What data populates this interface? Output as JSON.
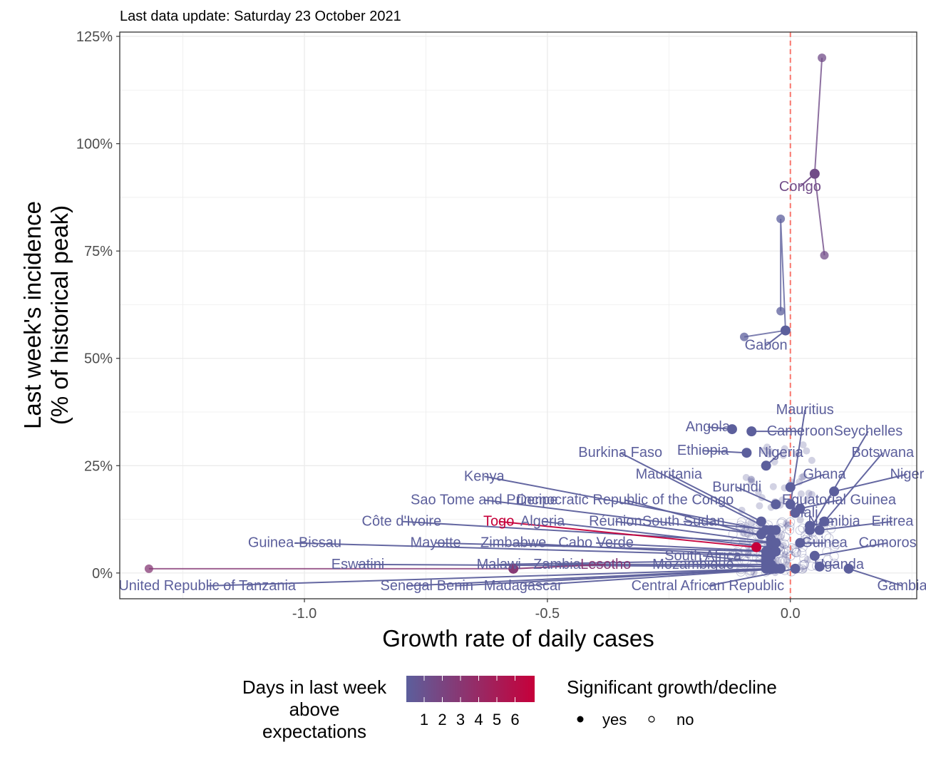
{
  "chart_data": {
    "type": "scatter",
    "subtitle": "Last data update: Saturday 23 October 2021",
    "xlabel": "Growth rate of daily cases",
    "ylabel_line1": "Last week's incidence",
    "ylabel_line2": "(% of historical peak)",
    "xlim": [
      -1.38,
      0.26
    ],
    "ylim": [
      -0.06,
      1.26
    ],
    "x_ticks": [
      -1.0,
      -0.5,
      0.0
    ],
    "x_tick_labels": [
      "-1.0",
      "-0.5",
      "0.0"
    ],
    "y_ticks": [
      0,
      0.25,
      0.5,
      0.75,
      1.0,
      1.25
    ],
    "y_tick_labels": [
      "0%",
      "25%",
      "50%",
      "75%",
      "100%",
      "125%"
    ],
    "reference_line_x": 0.0,
    "grid": true,
    "colors": {
      "low": "#5c5f9c",
      "high": "#c6003a",
      "reference": "#f8766d",
      "grid": "#ebebeb"
    },
    "legend": {
      "placement": "bottom",
      "color_title": [
        "Days in last week",
        "above",
        "expectations"
      ],
      "color_breaks": [
        "1",
        "2",
        "3",
        "4",
        "5",
        "6"
      ],
      "shape_title": "Significant growth/decline",
      "shape_labels": [
        "yes",
        "no"
      ]
    },
    "countries": [
      {
        "name": "Congo",
        "x": 0.05,
        "y": 0.93,
        "days": 2,
        "trail": [
          [
            0.07,
            0.74
          ],
          [
            0.05,
            0.93
          ],
          [
            0.065,
            1.2
          ]
        ],
        "label_x": 0.02,
        "label_y": 0.9
      },
      {
        "name": "Gabon",
        "x": -0.01,
        "y": 0.565,
        "days": 1,
        "trail": [
          [
            -0.02,
            0.61
          ],
          [
            -0.02,
            0.825
          ],
          [
            -0.01,
            0.565
          ],
          [
            -0.095,
            0.55
          ]
        ],
        "label_x": -0.05,
        "label_y": 0.53
      },
      {
        "name": "Mauritius",
        "x": 0.0,
        "y": 0.16,
        "days": 1,
        "label_x": 0.03,
        "label_y": 0.38
      },
      {
        "name": "Angola",
        "x": -0.12,
        "y": 0.335,
        "days": 1,
        "label_x": -0.17,
        "label_y": 0.34
      },
      {
        "name": "Cameroon",
        "x": -0.08,
        "y": 0.33,
        "days": 1,
        "label_x": 0.02,
        "label_y": 0.33
      },
      {
        "name": "Seychelles",
        "x": 0.04,
        "y": 0.1,
        "days": 1,
        "label_x": 0.16,
        "label_y": 0.33
      },
      {
        "name": "Burkina Faso",
        "x": -0.04,
        "y": 0.1,
        "days": 1,
        "label_x": -0.35,
        "label_y": 0.28
      },
      {
        "name": "Ethiopia",
        "x": -0.09,
        "y": 0.28,
        "days": 1,
        "label_x": -0.18,
        "label_y": 0.285
      },
      {
        "name": "Nigeria",
        "x": -0.05,
        "y": 0.25,
        "days": 1,
        "label_x": -0.02,
        "label_y": 0.28
      },
      {
        "name": "Botswana",
        "x": 0.07,
        "y": 0.12,
        "days": 1,
        "label_x": 0.19,
        "label_y": 0.28
      },
      {
        "name": "Kenya",
        "x": -0.05,
        "y": 0.1,
        "days": 1,
        "label_x": -0.63,
        "label_y": 0.225
      },
      {
        "name": "Mauritania",
        "x": -0.06,
        "y": 0.12,
        "days": 1,
        "label_x": -0.25,
        "label_y": 0.23
      },
      {
        "name": "Ghana",
        "x": 0.0,
        "y": 0.2,
        "days": 1,
        "label_x": 0.07,
        "label_y": 0.23
      },
      {
        "name": "Niger",
        "x": 0.09,
        "y": 0.19,
        "days": 1,
        "label_x": 0.24,
        "label_y": 0.23
      },
      {
        "name": "Burundi",
        "x": -0.03,
        "y": 0.16,
        "days": 1,
        "label_x": -0.11,
        "label_y": 0.2
      },
      {
        "name": "Sao Tome and Principe",
        "x": -0.06,
        "y": 0.09,
        "days": 1,
        "label_x": -0.63,
        "label_y": 0.17
      },
      {
        "name": "Democratic Republic of the Congo",
        "x": -0.04,
        "y": 0.08,
        "days": 1,
        "label_x": -0.34,
        "label_y": 0.17
      },
      {
        "name": "Equatorial Guinea",
        "x": 0.02,
        "y": 0.15,
        "days": 1,
        "label_x": 0.1,
        "label_y": 0.17
      },
      {
        "name": "Malawi",
        "x": -0.05,
        "y": 0.03,
        "days": 1,
        "label_x": -0.6,
        "label_y": 0.02
      },
      {
        "name": "Côte d'Ivoire",
        "x": -0.04,
        "y": 0.07,
        "days": 1,
        "label_x": -0.8,
        "label_y": 0.12
      },
      {
        "name": "Togo",
        "x": -0.07,
        "y": 0.06,
        "days": 6,
        "label_x": -0.6,
        "label_y": 0.12
      },
      {
        "name": "Algeria",
        "x": -0.04,
        "y": 0.06,
        "days": 1,
        "label_x": -0.51,
        "label_y": 0.12
      },
      {
        "name": "Réunion",
        "x": -0.03,
        "y": 0.07,
        "days": 1,
        "label_x": -0.36,
        "label_y": 0.12
      },
      {
        "name": "South Sudan",
        "x": -0.03,
        "y": 0.1,
        "days": 1,
        "label_x": -0.22,
        "label_y": 0.12
      },
      {
        "name": "Mali",
        "x": 0.01,
        "y": 0.14,
        "days": 1,
        "label_x": 0.03,
        "label_y": 0.14
      },
      {
        "name": "Namibia",
        "x": 0.04,
        "y": 0.11,
        "days": 1,
        "label_x": 0.09,
        "label_y": 0.12
      },
      {
        "name": "Eritrea",
        "x": 0.06,
        "y": 0.1,
        "days": 1,
        "label_x": 0.21,
        "label_y": 0.12
      },
      {
        "name": "Guinea-Bissau",
        "x": -0.05,
        "y": 0.04,
        "days": 1,
        "label_x": -1.02,
        "label_y": 0.07
      },
      {
        "name": "Mayotte",
        "x": -0.05,
        "y": 0.05,
        "days": 1,
        "label_x": -0.73,
        "label_y": 0.07
      },
      {
        "name": "Zimbabwe",
        "x": -0.04,
        "y": 0.04,
        "days": 1,
        "label_x": -0.57,
        "label_y": 0.07
      },
      {
        "name": "Cabo Verde",
        "x": -0.03,
        "y": 0.05,
        "days": 1,
        "label_x": -0.4,
        "label_y": 0.07
      },
      {
        "name": "Guinea",
        "x": 0.02,
        "y": 0.07,
        "days": 1,
        "label_x": 0.07,
        "label_y": 0.07
      },
      {
        "name": "Comoros",
        "x": 0.05,
        "y": 0.04,
        "days": 1,
        "label_x": 0.2,
        "label_y": 0.07
      },
      {
        "name": "South Africa",
        "x": -0.05,
        "y": 0.025,
        "days": 1,
        "label_x": -0.18,
        "label_y": 0.04
      },
      {
        "name": "Eswatini",
        "x": -0.05,
        "y": 0.015,
        "days": 1,
        "label_x": -0.89,
        "label_y": 0.02
      },
      {
        "name": "Zambia",
        "x": -0.04,
        "y": 0.02,
        "days": 1,
        "label_x": -0.48,
        "label_y": 0.02
      },
      {
        "name": "Lesotho",
        "x": -0.57,
        "y": 0.01,
        "days": 3,
        "trail": [
          [
            -1.32,
            0.01
          ],
          [
            -0.57,
            0.01
          ]
        ],
        "label_x": -0.38,
        "label_y": 0.02
      },
      {
        "name": "Mozambique",
        "x": -0.04,
        "y": 0.015,
        "days": 1,
        "label_x": -0.2,
        "label_y": 0.02
      },
      {
        "name": "Uganda",
        "x": 0.06,
        "y": 0.015,
        "days": 1,
        "label_x": 0.1,
        "label_y": 0.02
      },
      {
        "name": "United Republic of Tanzania",
        "x": -0.05,
        "y": 0.01,
        "days": 1,
        "label_x": -1.2,
        "label_y": -0.03
      },
      {
        "name": "Senegal",
        "x": -0.04,
        "y": 0.01,
        "days": 1,
        "label_x": -0.79,
        "label_y": -0.03
      },
      {
        "name": "Benin",
        "x": -0.03,
        "y": 0.01,
        "days": 1,
        "label_x": -0.69,
        "label_y": -0.03
      },
      {
        "name": "Madagascar",
        "x": -0.02,
        "y": 0.01,
        "days": 1,
        "label_x": -0.55,
        "label_y": -0.03
      },
      {
        "name": "Central African Republic",
        "x": 0.01,
        "y": 0.01,
        "days": 1,
        "label_x": -0.17,
        "label_y": -0.03
      },
      {
        "name": "Gambia",
        "x": 0.12,
        "y": 0.01,
        "days": 1,
        "label_x": 0.23,
        "label_y": -0.03
      }
    ]
  }
}
